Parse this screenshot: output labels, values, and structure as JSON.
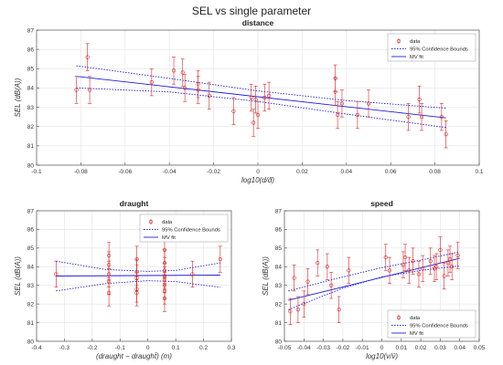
{
  "figure_title": "SEL vs single parameter",
  "chart_data": [
    {
      "type": "scatter",
      "title": "distance",
      "xlabel": "log10(d/d̄)",
      "ylabel": "SEL (dB(A))",
      "xlim": [
        -0.1,
        0.1
      ],
      "ylim": [
        80,
        87
      ],
      "xticks": [
        -0.1,
        -0.08,
        -0.06,
        -0.04,
        -0.02,
        0,
        0.02,
        0.04,
        0.06,
        0.08,
        0.1
      ],
      "xtick_labels": [
        "-0.1",
        "-0.08",
        "-0.06",
        "-0.04",
        "-0.02",
        "0",
        "0.02",
        "0.04",
        "0.06",
        "0.08",
        "0.1"
      ],
      "yticks": [
        80,
        81,
        82,
        83,
        84,
        85,
        86,
        87
      ],
      "ytick_labels": [
        "80",
        "81",
        "82",
        "83",
        "84",
        "85",
        "86",
        "87"
      ],
      "grid": true,
      "legend_position": "top-right",
      "legend": [
        "data",
        "95% Confidence Bounds",
        "MV fit"
      ],
      "series": [
        {
          "name": "data",
          "points": [
            {
              "x": -0.082,
              "y": 83.9,
              "err": 0.7
            },
            {
              "x": -0.077,
              "y": 85.6,
              "err": 0.7
            },
            {
              "x": -0.076,
              "y": 83.9,
              "err": 0.7
            },
            {
              "x": -0.048,
              "y": 84.3,
              "err": 0.7
            },
            {
              "x": -0.038,
              "y": 84.9,
              "err": 0.7
            },
            {
              "x": -0.034,
              "y": 84.8,
              "err": 0.7
            },
            {
              "x": -0.033,
              "y": 84.0,
              "err": 0.7
            },
            {
              "x": -0.027,
              "y": 84.2,
              "err": 0.7
            },
            {
              "x": -0.027,
              "y": 83.9,
              "err": 0.7
            },
            {
              "x": -0.022,
              "y": 83.6,
              "err": 0.7
            },
            {
              "x": -0.011,
              "y": 82.8,
              "err": 0.7
            },
            {
              "x": -0.003,
              "y": 83.5,
              "err": 0.7
            },
            {
              "x": -0.002,
              "y": 82.2,
              "err": 0.7
            },
            {
              "x": -0.001,
              "y": 83.4,
              "err": 0.7
            },
            {
              "x": 0.0,
              "y": 82.6,
              "err": 0.7
            },
            {
              "x": 0.003,
              "y": 83.5,
              "err": 0.7
            },
            {
              "x": 0.005,
              "y": 83.6,
              "err": 0.7
            },
            {
              "x": 0.035,
              "y": 84.5,
              "err": 0.7
            },
            {
              "x": 0.035,
              "y": 83.8,
              "err": 0.7
            },
            {
              "x": 0.036,
              "y": 82.6,
              "err": 0.7
            },
            {
              "x": 0.038,
              "y": 83.2,
              "err": 0.7
            },
            {
              "x": 0.045,
              "y": 82.6,
              "err": 0.7
            },
            {
              "x": 0.05,
              "y": 83.2,
              "err": 0.7
            },
            {
              "x": 0.068,
              "y": 82.5,
              "err": 0.7
            },
            {
              "x": 0.073,
              "y": 83.4,
              "err": 0.7
            },
            {
              "x": 0.074,
              "y": 82.5,
              "err": 0.7
            },
            {
              "x": 0.083,
              "y": 82.5,
              "err": 0.7
            },
            {
              "x": 0.085,
              "y": 81.6,
              "err": 0.7
            }
          ]
        },
        {
          "name": "95% Confidence Bounds",
          "upper": [
            [
              -0.082,
              85.15
            ],
            [
              -0.04,
              84.5
            ],
            [
              0,
              83.85
            ],
            [
              0.04,
              83.35
            ],
            [
              0.085,
              82.95
            ]
          ],
          "lower": [
            [
              -0.082,
              84.0
            ],
            [
              -0.04,
              83.8
            ],
            [
              0,
              83.3
            ],
            [
              0.04,
              82.65
            ],
            [
              0.085,
              81.95
            ]
          ]
        },
        {
          "name": "MV fit",
          "line": [
            [
              -0.082,
              84.6
            ],
            [
              0.085,
              82.45
            ]
          ]
        }
      ],
      "colors": {
        "data": "#d62728",
        "bounds": "#1f1fe0",
        "fit": "#1f1fe0"
      }
    },
    {
      "type": "scatter",
      "title": "draught",
      "xlabel": "(draught − draught̄) (m)",
      "ylabel": "SEL (dB(A))",
      "xlim": [
        -0.4,
        0.3
      ],
      "ylim": [
        80,
        87
      ],
      "xticks": [
        -0.4,
        -0.3,
        -0.2,
        -0.1,
        0,
        0.1,
        0.2,
        0.3
      ],
      "xtick_labels": [
        "-0.4",
        "-0.3",
        "-0.2",
        "-0.1",
        "0",
        "0.1",
        "0.2",
        "0.3"
      ],
      "yticks": [
        80,
        81,
        82,
        83,
        84,
        85,
        86,
        87
      ],
      "ytick_labels": [
        "80",
        "81",
        "82",
        "83",
        "84",
        "85",
        "86",
        "87"
      ],
      "grid": true,
      "legend_position": "top-right",
      "legend": [
        "data",
        "95% Confidence Bounds",
        "MV fit"
      ],
      "series": [
        {
          "name": "data",
          "points": [
            {
              "x": -0.33,
              "y": 83.6,
              "err": 0.7
            },
            {
              "x": -0.14,
              "y": 84.6,
              "err": 0.7
            },
            {
              "x": -0.14,
              "y": 84.1,
              "err": 0.7
            },
            {
              "x": -0.14,
              "y": 83.6,
              "err": 0.7
            },
            {
              "x": -0.14,
              "y": 83.2,
              "err": 0.7
            },
            {
              "x": -0.14,
              "y": 82.6,
              "err": 0.7
            },
            {
              "x": -0.04,
              "y": 84.4,
              "err": 0.7
            },
            {
              "x": -0.04,
              "y": 83.7,
              "err": 0.7
            },
            {
              "x": -0.04,
              "y": 83.4,
              "err": 0.7
            },
            {
              "x": -0.04,
              "y": 82.8,
              "err": 0.7
            },
            {
              "x": -0.04,
              "y": 82.6,
              "err": 0.7
            },
            {
              "x": 0.06,
              "y": 84.9,
              "err": 0.7
            },
            {
              "x": 0.06,
              "y": 84.2,
              "err": 0.7
            },
            {
              "x": 0.06,
              "y": 83.8,
              "err": 0.7
            },
            {
              "x": 0.06,
              "y": 83.5,
              "err": 0.7
            },
            {
              "x": 0.06,
              "y": 83.3,
              "err": 0.7
            },
            {
              "x": 0.06,
              "y": 83.0,
              "err": 0.7
            },
            {
              "x": 0.06,
              "y": 82.7,
              "err": 0.7
            },
            {
              "x": 0.06,
              "y": 82.3,
              "err": 0.7
            },
            {
              "x": 0.16,
              "y": 83.6,
              "err": 0.7
            },
            {
              "x": 0.26,
              "y": 84.4,
              "err": 0.7
            }
          ]
        },
        {
          "name": "95% Confidence Bounds",
          "upper": [
            [
              -0.33,
              84.3
            ],
            [
              -0.15,
              83.85
            ],
            [
              0,
              83.75
            ],
            [
              0.1,
              83.8
            ],
            [
              0.26,
              84.2
            ]
          ],
          "lower": [
            [
              -0.33,
              82.7
            ],
            [
              -0.15,
              83.1
            ],
            [
              0,
              83.25
            ],
            [
              0.1,
              83.2
            ],
            [
              0.26,
              82.9
            ]
          ]
        },
        {
          "name": "MV fit",
          "line": [
            [
              -0.33,
              83.5
            ],
            [
              0.26,
              83.55
            ]
          ]
        }
      ],
      "colors": {
        "data": "#d62728",
        "bounds": "#1f1fe0",
        "fit": "#1f1fe0"
      }
    },
    {
      "type": "scatter",
      "title": "speed",
      "xlabel": "log10(v/v̄)",
      "ylabel": "SEL (dB(A))",
      "xlim": [
        -0.05,
        0.05
      ],
      "ylim": [
        80,
        87
      ],
      "xticks": [
        -0.05,
        -0.04,
        -0.03,
        -0.02,
        -0.01,
        0,
        0.01,
        0.02,
        0.03,
        0.04,
        0.05
      ],
      "xtick_labels": [
        "-0.05",
        "-0.04",
        "-0.03",
        "-0.02",
        "-0.01",
        "0",
        "0.01",
        "0.02",
        "0.03",
        "0.04",
        "0.05"
      ],
      "yticks": [
        80,
        81,
        82,
        83,
        84,
        85,
        86,
        87
      ],
      "ytick_labels": [
        "80",
        "81",
        "82",
        "83",
        "84",
        "85",
        "86",
        "87"
      ],
      "grid": true,
      "legend_position": "bottom-right",
      "legend": [
        "data",
        "95% Confidence Bounds",
        "MV fit"
      ],
      "series": [
        {
          "name": "data",
          "points": [
            {
              "x": -0.047,
              "y": 81.6,
              "err": 0.7
            },
            {
              "x": -0.045,
              "y": 83.4,
              "err": 0.7
            },
            {
              "x": -0.043,
              "y": 81.7,
              "err": 0.7
            },
            {
              "x": -0.04,
              "y": 82.0,
              "err": 0.7
            },
            {
              "x": -0.038,
              "y": 83.2,
              "err": 0.7
            },
            {
              "x": -0.033,
              "y": 84.2,
              "err": 0.7
            },
            {
              "x": -0.028,
              "y": 84.0,
              "err": 0.7
            },
            {
              "x": -0.026,
              "y": 83.0,
              "err": 0.7
            },
            {
              "x": -0.022,
              "y": 81.7,
              "err": 0.7
            },
            {
              "x": -0.017,
              "y": 83.8,
              "err": 0.7
            },
            {
              "x": 0.002,
              "y": 84.5,
              "err": 0.7
            },
            {
              "x": 0.004,
              "y": 83.8,
              "err": 0.7
            },
            {
              "x": 0.011,
              "y": 84.1,
              "err": 0.7
            },
            {
              "x": 0.012,
              "y": 84.5,
              "err": 0.7
            },
            {
              "x": 0.014,
              "y": 83.8,
              "err": 0.7
            },
            {
              "x": 0.016,
              "y": 84.3,
              "err": 0.7
            },
            {
              "x": 0.019,
              "y": 83.6,
              "err": 0.7
            },
            {
              "x": 0.021,
              "y": 83.9,
              "err": 0.7
            },
            {
              "x": 0.025,
              "y": 84.3,
              "err": 0.7
            },
            {
              "x": 0.027,
              "y": 83.9,
              "err": 0.7
            },
            {
              "x": 0.028,
              "y": 84.0,
              "err": 0.7
            },
            {
              "x": 0.03,
              "y": 84.9,
              "err": 0.7
            },
            {
              "x": 0.032,
              "y": 83.5,
              "err": 0.7
            },
            {
              "x": 0.034,
              "y": 84.2,
              "err": 0.7
            },
            {
              "x": 0.035,
              "y": 84.4,
              "err": 0.7
            },
            {
              "x": 0.036,
              "y": 84.0,
              "err": 0.7
            },
            {
              "x": 0.039,
              "y": 84.6,
              "err": 0.7
            }
          ]
        },
        {
          "name": "95% Confidence Bounds",
          "upper": [
            [
              -0.048,
              82.7
            ],
            [
              -0.02,
              83.45
            ],
            [
              0,
              83.95
            ],
            [
              0.02,
              84.35
            ],
            [
              0.04,
              84.8
            ]
          ],
          "lower": [
            [
              -0.048,
              81.7
            ],
            [
              -0.02,
              82.85
            ],
            [
              0,
              83.45
            ],
            [
              0.02,
              83.8
            ],
            [
              0.04,
              84.05
            ]
          ]
        },
        {
          "name": "MV fit",
          "line": [
            [
              -0.048,
              82.2
            ],
            [
              0.04,
              84.45
            ]
          ]
        }
      ],
      "colors": {
        "data": "#d62728",
        "bounds": "#1f1fe0",
        "fit": "#1f1fe0"
      }
    }
  ]
}
